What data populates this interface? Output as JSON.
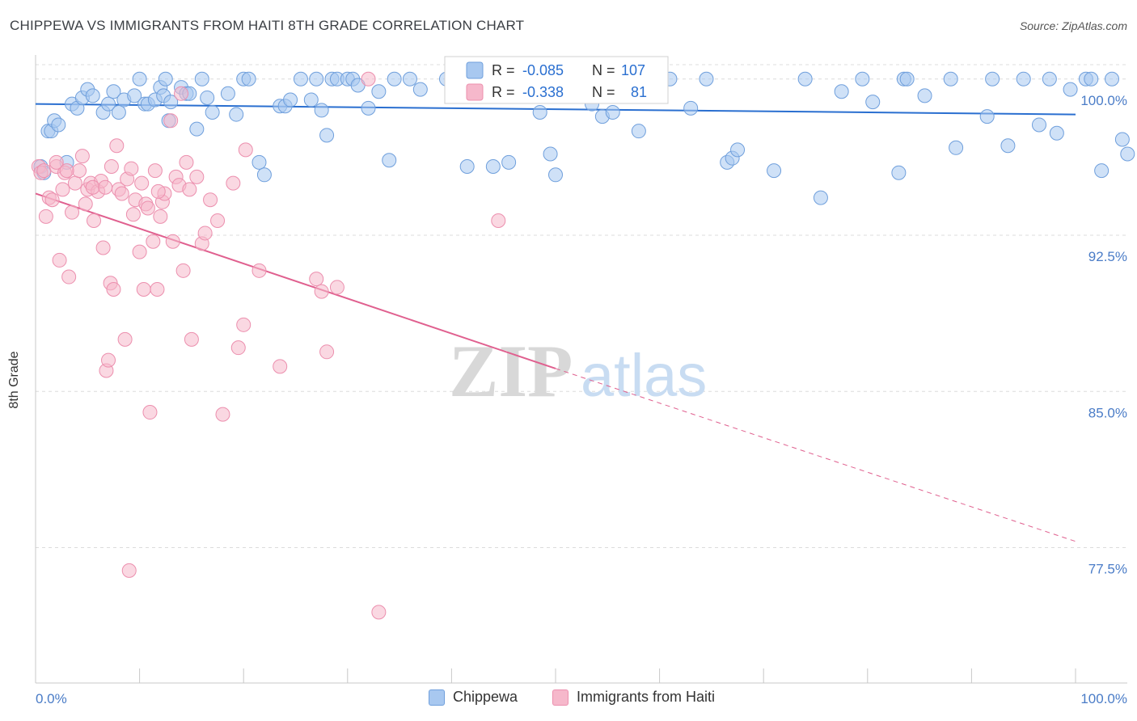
{
  "title": "CHIPPEWA VS IMMIGRANTS FROM HAITI 8TH GRADE CORRELATION CHART",
  "source": "Source: ZipAtlas.com",
  "watermark": {
    "zip": "ZIP",
    "atlas": "atlas"
  },
  "colors": {
    "chippewa_fill": "#a8c8f0",
    "chippewa_stroke": "#6f9fdc",
    "chippewa_line": "#2a6fd0",
    "haiti_fill": "#f6b8cb",
    "haiti_stroke": "#ec8fae",
    "haiti_line": "#e0608f",
    "axis_text": "#4a7cc7",
    "grid": "#dcdcdc"
  },
  "chart_data": {
    "type": "scatter",
    "ylabel": "8th Grade",
    "xlabel": "",
    "xlim": [
      0,
      100
    ],
    "ylim": [
      71.0,
      101.0
    ],
    "x_tick_labels": [
      "0.0%",
      "100.0%"
    ],
    "y_ticks": [
      77.5,
      85.0,
      92.5,
      100.0
    ],
    "y_tick_labels": [
      "77.5%",
      "85.0%",
      "92.5%",
      "100.0%"
    ],
    "grid": true,
    "legend_position": "top-center",
    "legend": [
      {
        "r_label": "R =",
        "r_value": "-0.085",
        "n_label": "N =",
        "n_value": "107"
      },
      {
        "r_label": "R =",
        "r_value": "-0.338",
        "n_label": "N =",
        "n_value": "81"
      }
    ],
    "series": [
      {
        "name": "Chippewa",
        "trend": {
          "x": [
            0,
            100
          ],
          "y": [
            98.8,
            98.3
          ]
        },
        "points": [
          [
            0.5,
            95.8
          ],
          [
            0.8,
            95.5
          ],
          [
            1.2,
            97.5
          ],
          [
            1.5,
            97.5
          ],
          [
            1.8,
            98.0
          ],
          [
            2.2,
            97.8
          ],
          [
            3.0,
            96.0
          ],
          [
            3.5,
            98.8
          ],
          [
            4.0,
            98.6
          ],
          [
            4.5,
            99.1
          ],
          [
            5.0,
            99.5
          ],
          [
            5.5,
            99.2
          ],
          [
            6.5,
            98.4
          ],
          [
            7.0,
            98.8
          ],
          [
            7.5,
            99.4
          ],
          [
            8.0,
            98.4
          ],
          [
            8.5,
            99.0
          ],
          [
            9.5,
            99.2
          ],
          [
            10.0,
            100.0
          ],
          [
            10.5,
            98.8
          ],
          [
            10.8,
            98.8
          ],
          [
            11.5,
            99.0
          ],
          [
            12.0,
            99.6
          ],
          [
            12.3,
            99.2
          ],
          [
            12.5,
            100.0
          ],
          [
            12.8,
            98.0
          ],
          [
            13.0,
            98.9
          ],
          [
            14.0,
            99.6
          ],
          [
            14.5,
            99.3
          ],
          [
            14.8,
            99.3
          ],
          [
            15.5,
            97.6
          ],
          [
            16.0,
            100.0
          ],
          [
            16.5,
            99.1
          ],
          [
            17.0,
            98.4
          ],
          [
            18.5,
            99.3
          ],
          [
            19.3,
            98.3
          ],
          [
            20.0,
            100.0
          ],
          [
            20.5,
            100.0
          ],
          [
            21.5,
            96.0
          ],
          [
            22.0,
            95.4
          ],
          [
            23.5,
            98.7
          ],
          [
            24.0,
            98.7
          ],
          [
            25.5,
            100.0
          ],
          [
            26.5,
            99.0
          ],
          [
            27.0,
            100.0
          ],
          [
            27.5,
            98.5
          ],
          [
            28.0,
            97.3
          ],
          [
            28.5,
            100.0
          ],
          [
            29.0,
            100.0
          ],
          [
            30.0,
            100.0
          ],
          [
            30.5,
            100.0
          ],
          [
            31.0,
            99.7
          ],
          [
            32.0,
            98.6
          ],
          [
            33.0,
            99.4
          ],
          [
            34.0,
            96.1
          ],
          [
            36.0,
            100.0
          ],
          [
            37.0,
            99.5
          ],
          [
            39.5,
            100.0
          ],
          [
            41.5,
            95.8
          ],
          [
            43.0,
            100.0
          ],
          [
            44.0,
            95.8
          ],
          [
            45.5,
            96.0
          ],
          [
            47.0,
            100.0
          ],
          [
            48.5,
            98.4
          ],
          [
            49.5,
            96.4
          ],
          [
            50.0,
            95.4
          ],
          [
            52.5,
            100.0
          ],
          [
            53.5,
            98.8
          ],
          [
            54.5,
            98.2
          ],
          [
            55.5,
            98.4
          ],
          [
            57.0,
            100.0
          ],
          [
            58.0,
            97.5
          ],
          [
            59.5,
            99.3
          ],
          [
            61.0,
            100.0
          ],
          [
            63.0,
            98.6
          ],
          [
            64.5,
            100.0
          ],
          [
            66.5,
            96.0
          ],
          [
            67.0,
            96.2
          ],
          [
            67.5,
            96.6
          ],
          [
            71.0,
            95.6
          ],
          [
            74.0,
            100.0
          ],
          [
            75.5,
            94.3
          ],
          [
            77.5,
            99.4
          ],
          [
            79.5,
            100.0
          ],
          [
            80.5,
            98.9
          ],
          [
            83.0,
            95.5
          ],
          [
            83.5,
            100.0
          ],
          [
            83.8,
            100.0
          ],
          [
            85.5,
            99.2
          ],
          [
            88.0,
            100.0
          ],
          [
            88.5,
            96.7
          ],
          [
            91.5,
            98.2
          ],
          [
            92.0,
            100.0
          ],
          [
            93.5,
            96.8
          ],
          [
            95.0,
            100.0
          ],
          [
            96.5,
            97.8
          ],
          [
            97.5,
            100.0
          ],
          [
            98.2,
            97.4
          ],
          [
            99.5,
            99.5
          ],
          [
            101.0,
            100.0
          ],
          [
            102.5,
            95.6
          ],
          [
            103.5,
            100.0
          ],
          [
            104.5,
            97.1
          ],
          [
            105.0,
            96.4
          ],
          [
            101.5,
            100.0
          ],
          [
            24.5,
            99.0
          ],
          [
            34.5,
            100.0
          ]
        ]
      },
      {
        "name": "Immigrants from Haiti",
        "trend": {
          "x": [
            0,
            50
          ],
          "y": [
            94.5,
            86.1
          ]
        },
        "trend_dashed": {
          "x": [
            50,
            100
          ],
          "y": [
            86.1,
            77.8
          ]
        },
        "points": [
          [
            0.3,
            95.8
          ],
          [
            0.5,
            95.5
          ],
          [
            0.8,
            95.6
          ],
          [
            1.0,
            93.4
          ],
          [
            1.3,
            94.3
          ],
          [
            1.6,
            94.2
          ],
          [
            2.0,
            95.8
          ],
          [
            2.3,
            91.3
          ],
          [
            2.6,
            94.7
          ],
          [
            2.8,
            95.5
          ],
          [
            3.2,
            90.5
          ],
          [
            3.5,
            93.6
          ],
          [
            3.8,
            95.0
          ],
          [
            4.2,
            95.6
          ],
          [
            4.5,
            96.3
          ],
          [
            4.8,
            94.0
          ],
          [
            5.0,
            94.7
          ],
          [
            5.3,
            95.0
          ],
          [
            5.6,
            93.2
          ],
          [
            6.0,
            94.6
          ],
          [
            6.3,
            95.1
          ],
          [
            6.5,
            91.9
          ],
          [
            6.8,
            86.0
          ],
          [
            7.0,
            86.5
          ],
          [
            7.2,
            90.2
          ],
          [
            7.5,
            89.9
          ],
          [
            7.8,
            96.8
          ],
          [
            8.0,
            94.7
          ],
          [
            8.3,
            94.5
          ],
          [
            8.6,
            87.5
          ],
          [
            8.8,
            95.2
          ],
          [
            9.0,
            76.4
          ],
          [
            9.2,
            95.7
          ],
          [
            9.4,
            93.5
          ],
          [
            9.6,
            94.2
          ],
          [
            10.0,
            91.7
          ],
          [
            10.2,
            95.0
          ],
          [
            10.4,
            89.9
          ],
          [
            10.6,
            94.0
          ],
          [
            10.8,
            93.8
          ],
          [
            11.0,
            84.0
          ],
          [
            11.3,
            92.2
          ],
          [
            11.5,
            95.6
          ],
          [
            11.7,
            89.9
          ],
          [
            12.0,
            93.4
          ],
          [
            12.2,
            94.1
          ],
          [
            12.4,
            94.5
          ],
          [
            13.0,
            98.0
          ],
          [
            13.2,
            92.2
          ],
          [
            13.5,
            95.3
          ],
          [
            13.8,
            94.9
          ],
          [
            14.0,
            99.3
          ],
          [
            14.2,
            90.8
          ],
          [
            14.8,
            94.7
          ],
          [
            15.0,
            87.5
          ],
          [
            15.5,
            95.3
          ],
          [
            16.0,
            92.1
          ],
          [
            16.3,
            92.6
          ],
          [
            16.8,
            94.2
          ],
          [
            17.5,
            93.2
          ],
          [
            18.0,
            83.9
          ],
          [
            19.0,
            95.0
          ],
          [
            19.5,
            87.1
          ],
          [
            20.0,
            88.2
          ],
          [
            20.2,
            96.6
          ],
          [
            21.5,
            90.8
          ],
          [
            23.5,
            86.2
          ],
          [
            27.0,
            90.4
          ],
          [
            27.5,
            89.8
          ],
          [
            28.0,
            86.9
          ],
          [
            29.0,
            90.0
          ],
          [
            32.0,
            100.0
          ],
          [
            33.0,
            74.4
          ],
          [
            44.5,
            93.2
          ],
          [
            2.0,
            96.0
          ],
          [
            3.0,
            95.6
          ],
          [
            5.5,
            94.8
          ],
          [
            7.3,
            95.8
          ],
          [
            11.8,
            94.6
          ],
          [
            14.5,
            96.0
          ],
          [
            6.7,
            94.8
          ]
        ]
      }
    ]
  },
  "bottom_legend": [
    "Chippewa",
    "Immigrants from Haiti"
  ]
}
